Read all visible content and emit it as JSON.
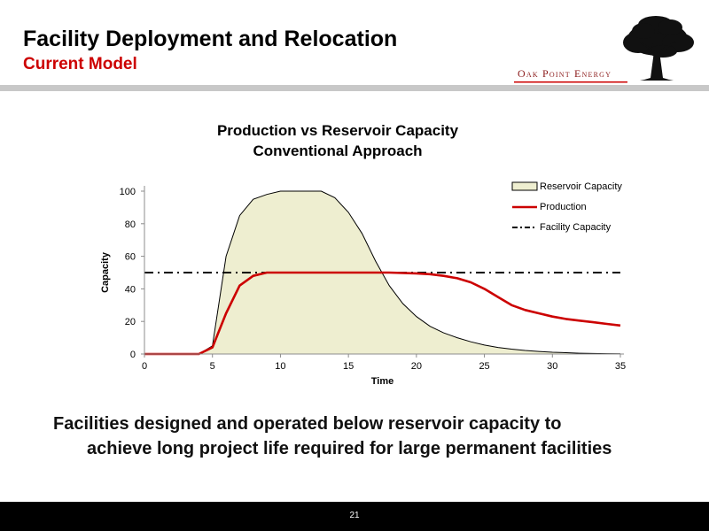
{
  "slide": {
    "title": "Facility Deployment and Relocation",
    "subtitle": "Current Model",
    "subtitle_color": "#cc0000",
    "page_number": "21",
    "caption_lines": [
      "Facilities designed and operated below reservoir capacity to",
      "achieve long project life required for large permanent facilities"
    ]
  },
  "logo": {
    "text": "Oak Point Energy",
    "text_color": "#8b1a1a",
    "underline_color": "#cc0000",
    "icon": "oak-tree-icon"
  },
  "chart_data": {
    "type": "area",
    "title_lines": [
      "Production vs Reservoir Capacity",
      "Conventional Approach"
    ],
    "xlabel": "Time",
    "ylabel": "Capacity",
    "xlim": [
      0,
      35
    ],
    "ylim": [
      0,
      100
    ],
    "xticks": [
      0,
      5,
      10,
      15,
      20,
      25,
      30,
      35
    ],
    "yticks": [
      0,
      20,
      40,
      60,
      80,
      100
    ],
    "grid": false,
    "legend_position": "top-right",
    "series": [
      {
        "name": "Reservoir Capacity",
        "style": "filled-area",
        "fill": "#eeeed0",
        "stroke": "#000000",
        "x": [
          0,
          4,
          5,
          6,
          7,
          8,
          9,
          10,
          11,
          12,
          13,
          14,
          15,
          16,
          17,
          18,
          19,
          20,
          21,
          22,
          23,
          24,
          25,
          26,
          27,
          28,
          29,
          30,
          31,
          32,
          33,
          34,
          35
        ],
        "y": [
          0,
          0,
          5,
          60,
          85,
          95,
          98,
          100,
          100,
          100,
          100,
          96,
          87,
          74,
          57,
          42,
          31,
          23,
          17,
          13,
          10,
          7.5,
          5.5,
          4,
          3,
          2.2,
          1.6,
          1.1,
          0.8,
          0.5,
          0.3,
          0.2,
          0.1
        ]
      },
      {
        "name": "Production",
        "style": "line",
        "stroke": "#cc0000",
        "x": [
          0,
          4,
          5,
          6,
          7,
          8,
          9,
          10,
          12,
          14,
          16,
          18,
          20,
          21,
          22,
          23,
          24,
          25,
          26,
          27,
          28,
          29,
          30,
          31,
          32,
          33,
          34,
          35
        ],
        "y": [
          0,
          0,
          4,
          25,
          42,
          48,
          50,
          50,
          50,
          50,
          50,
          50,
          49.5,
          49,
          48,
          46.5,
          44,
          40,
          35,
          30,
          27,
          25,
          23,
          21.5,
          20.5,
          19.5,
          18.5,
          17.5
        ]
      },
      {
        "name": "Facility Capacity",
        "style": "dash-dot",
        "stroke": "#000000",
        "x": [
          0,
          35
        ],
        "y": [
          50,
          50
        ]
      }
    ]
  }
}
